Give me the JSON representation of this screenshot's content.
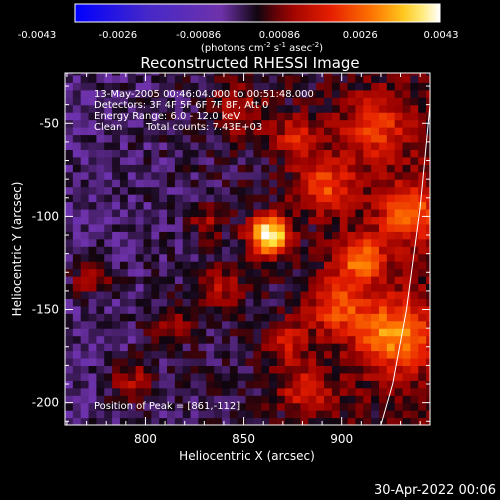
{
  "chart_data": {
    "type": "heatmap",
    "title": "Reconstructed RHESSI Image",
    "xlabel": "Heliocentric X (arcsec)",
    "ylabel": "Heliocentric Y (arcsec)",
    "xlim": [
      759,
      945
    ],
    "ylim": [
      -212,
      -23
    ],
    "xticks": [
      800,
      850,
      900
    ],
    "yticks": [
      -50,
      -100,
      -150,
      -200
    ],
    "colorbar": {
      "ticks": [
        "-0.0043",
        "-0.0026",
        "-0.00086",
        "0.00086",
        "0.0026",
        "0.0043"
      ],
      "range": [
        -0.0043,
        0.0043
      ],
      "label_prefix": "(photons cm",
      "label_exp1": "-2",
      "label_mid": " s",
      "label_exp2": "-1",
      "label_mid2": " asec",
      "label_exp3": "-2",
      "label_suffix": ")"
    },
    "annotations": {
      "time_range": "13-May-2005 00:46:04.000 to 00:51:48.000",
      "detectors": "Detectors: 3F 4F 5F 6F 7F 8F, Att 0",
      "energy": "Energy Range: 6.0 - 12.0 keV",
      "method": "Clean",
      "counts": "Total counts: 7.43E+03",
      "peak": "Position of Peak = [861,-112]"
    },
    "peak": [
      861,
      -112
    ],
    "limb_curve": [
      [
        945,
        -40
      ],
      [
        940,
        -95
      ],
      [
        933,
        -150
      ],
      [
        926,
        -190
      ],
      [
        920,
        -212
      ]
    ],
    "sources": [
      {
        "x": 861,
        "y": -112,
        "amp": 1.0,
        "s": 7
      },
      {
        "x": 907,
        "y": -125,
        "amp": 0.55,
        "s": 9
      },
      {
        "x": 925,
        "y": -165,
        "amp": 0.6,
        "s": 14
      },
      {
        "x": 932,
        "y": -100,
        "amp": 0.5,
        "s": 11
      },
      {
        "x": 890,
        "y": -85,
        "amp": 0.45,
        "s": 10
      },
      {
        "x": 915,
        "y": -55,
        "amp": 0.4,
        "s": 12
      },
      {
        "x": 895,
        "y": -150,
        "amp": 0.45,
        "s": 10
      },
      {
        "x": 880,
        "y": -195,
        "amp": 0.35,
        "s": 9
      },
      {
        "x": 835,
        "y": -140,
        "amp": 0.3,
        "s": 8
      },
      {
        "x": 810,
        "y": -160,
        "amp": 0.28,
        "s": 7
      },
      {
        "x": 770,
        "y": -135,
        "amp": 0.3,
        "s": 7
      },
      {
        "x": 790,
        "y": -190,
        "amp": 0.28,
        "s": 8
      },
      {
        "x": 845,
        "y": -45,
        "amp": 0.25,
        "s": 10
      },
      {
        "x": 830,
        "y": -105,
        "amp": 0.25,
        "s": 6
      },
      {
        "x": 875,
        "y": -60,
        "amp": 0.35,
        "s": 8
      },
      {
        "x": 870,
        "y": -170,
        "amp": 0.3,
        "s": 8
      }
    ]
  },
  "timestamp": "30-Apr-2022 00:06"
}
